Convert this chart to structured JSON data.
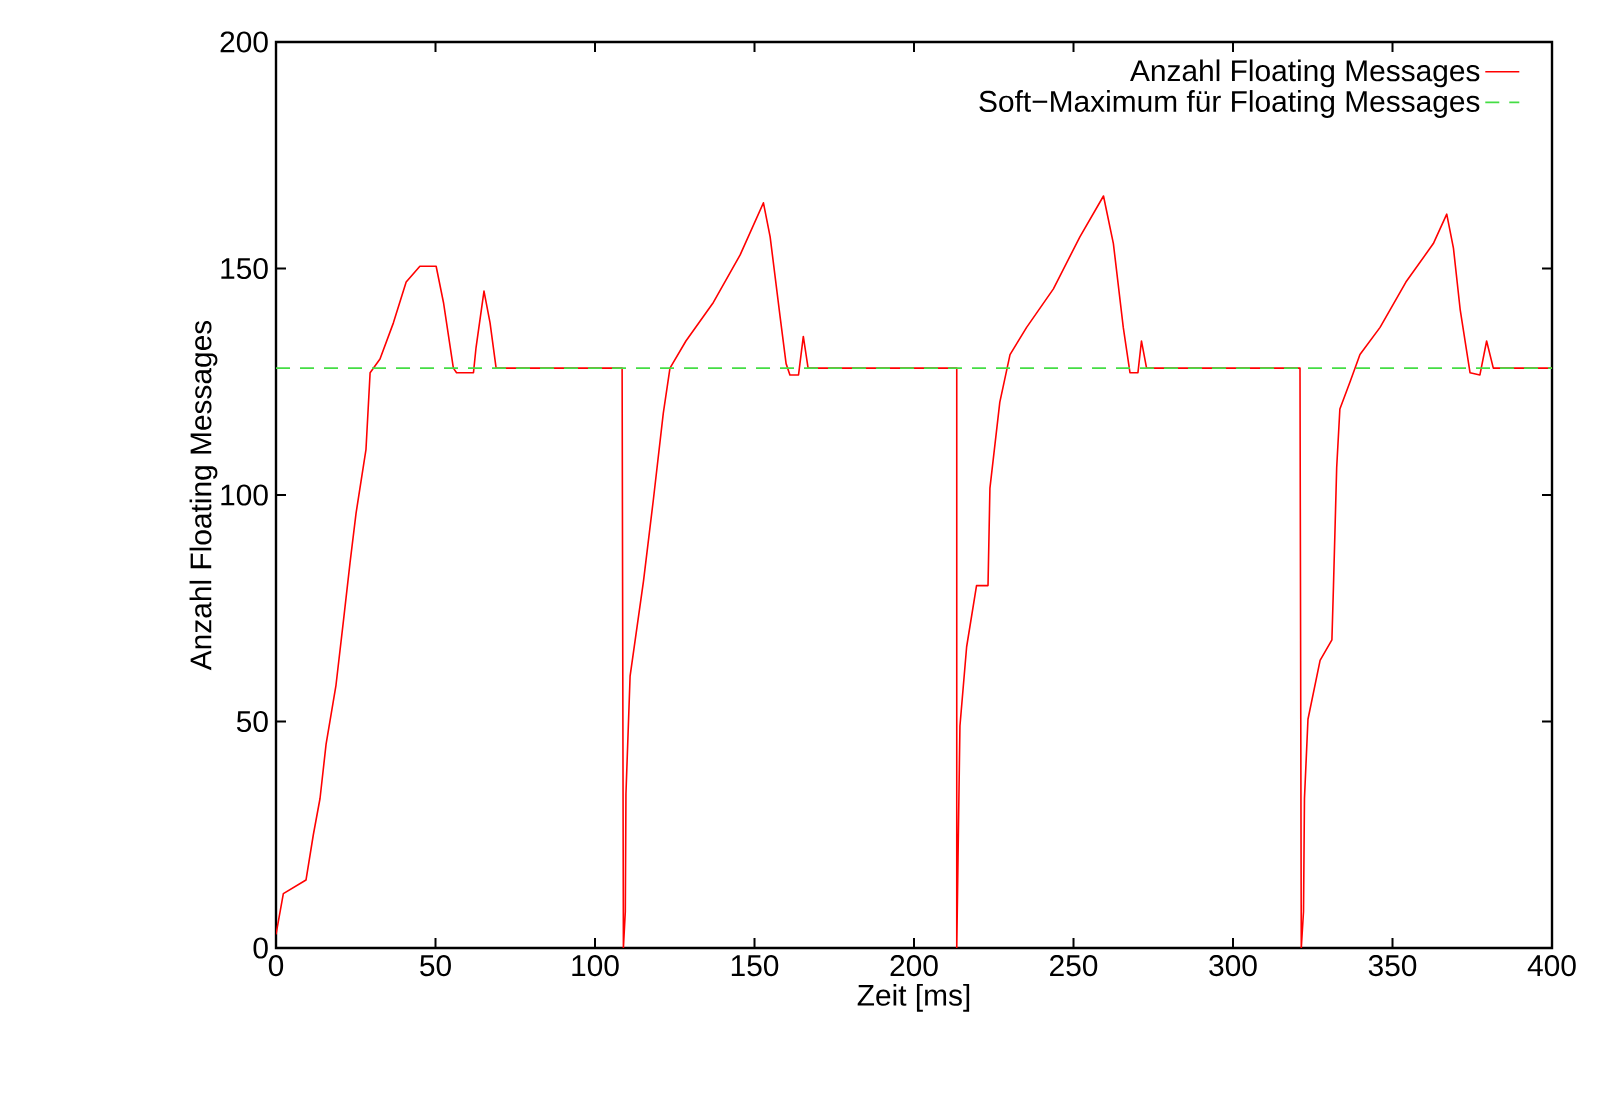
{
  "chart_data": {
    "type": "line",
    "xlabel": "Zeit [ms]",
    "ylabel": "Anzahl Floating Messages",
    "xlim": [
      0,
      400
    ],
    "ylim": [
      0,
      200
    ],
    "xticks": [
      0,
      50,
      100,
      150,
      200,
      250,
      300,
      350,
      400
    ],
    "yticks": [
      0,
      50,
      100,
      150,
      200
    ],
    "legend": "top right",
    "marker": "none",
    "series": [
      {
        "name": "Anzahl Floating Messages",
        "color": "#ff0000",
        "line_style": "solid",
        "x": [
          0,
          2.3,
          9.4,
          11.7,
          13.8,
          15.7,
          18.8,
          21.1,
          23.2,
          25.1,
          28.2,
          29.5,
          32.6,
          36.8,
          40.8,
          45.1,
          50.2,
          52.5,
          55.6,
          56.6,
          61.9,
          62.7,
          65.2,
          67.1,
          69,
          108.5,
          108.9,
          109.5,
          109.7,
          111,
          115.2,
          118.3,
          121.4,
          123.5,
          128.5,
          137.1,
          145.5,
          152.8,
          154.9,
          158,
          159.9,
          161.1,
          163.8,
          165.3,
          166.8,
          213.4,
          213.4,
          213.8,
          214.4,
          216.5,
          219.6,
          223.2,
          223.8,
          226.9,
          230.1,
          235.3,
          243.7,
          252,
          259.4,
          262.5,
          265.6,
          267.7,
          270.2,
          271.3,
          272.9,
          321,
          321.4,
          322.1,
          322.4,
          323.5,
          327.3,
          331,
          331.5,
          332.5,
          333.5,
          336.7,
          339.8,
          346.1,
          354.2,
          362.8,
          367,
          369.1,
          371.2,
          374.3,
          377.4,
          379.5,
          381.6,
          400
        ],
        "values": [
          3,
          12,
          15,
          25,
          33,
          45,
          58,
          72,
          85,
          96,
          110,
          127,
          130,
          138,
          147,
          150.5,
          150.5,
          142.5,
          128,
          127,
          127,
          132.5,
          145,
          138,
          128,
          128,
          0,
          8,
          34,
          60,
          81,
          99,
          118,
          128,
          134,
          142.5,
          153,
          164.5,
          157,
          139.5,
          129,
          126.5,
          126.5,
          135,
          128,
          128,
          0,
          20,
          49,
          66.5,
          80,
          80,
          101.5,
          120.5,
          131,
          137,
          145.5,
          157,
          166,
          155.5,
          137,
          127,
          127,
          134,
          128,
          128,
          0,
          8,
          33,
          50.5,
          63.5,
          68,
          80,
          106,
          119,
          125,
          131,
          137,
          147,
          155.5,
          162,
          154.5,
          141,
          127,
          126.5,
          134,
          128,
          128
        ]
      },
      {
        "name": "Soft−Maximum für Floating Messages",
        "color": "#44dd44",
        "line_style": "dashed",
        "x": [
          0,
          400
        ],
        "values": [
          128,
          128
        ]
      }
    ]
  }
}
